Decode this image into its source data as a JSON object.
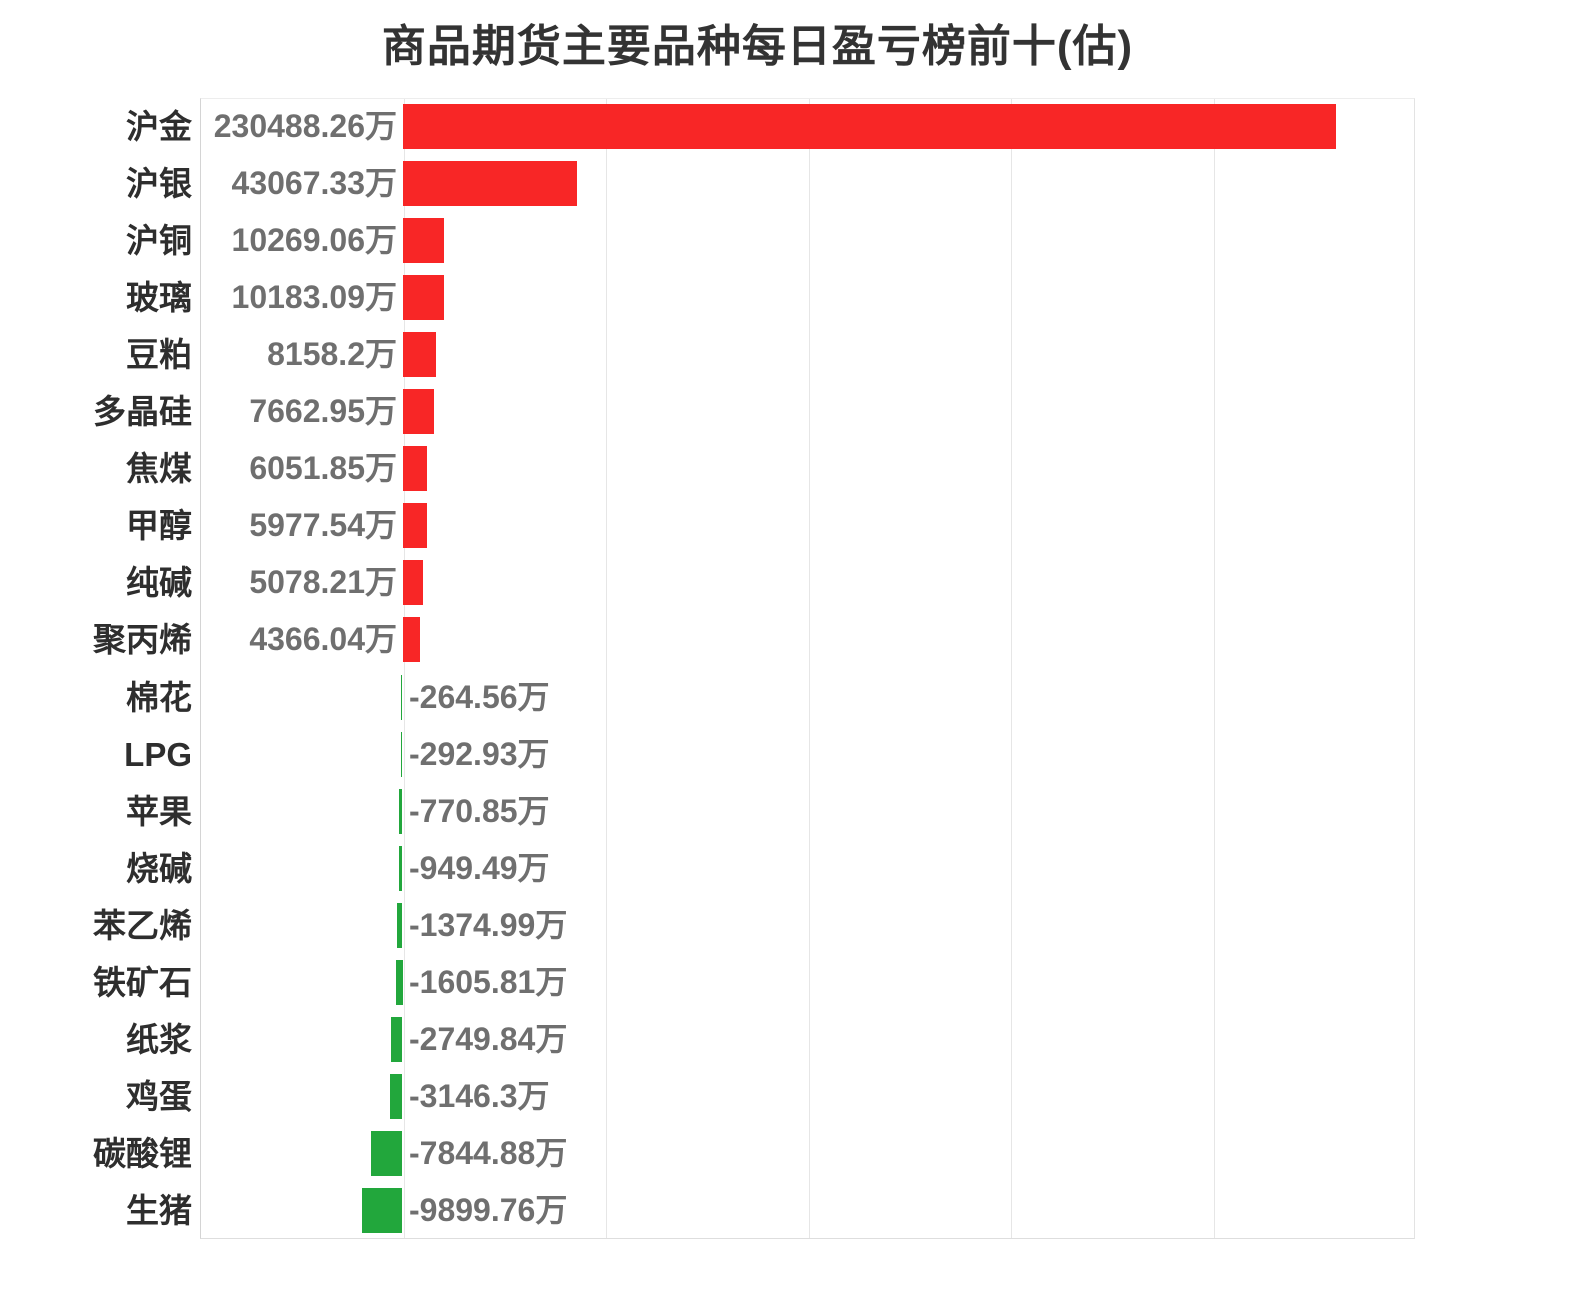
{
  "title": "商品期货主要品种每日盈亏榜前十(估)",
  "colors": {
    "positive_bar": "#f82626",
    "negative_bar": "#22a73c",
    "category_label": "#2e2e2e",
    "value_label": "#6f6f6f",
    "title": "#333333",
    "gridline": "#e6e6e6"
  },
  "chart_data": {
    "type": "bar",
    "orientation": "horizontal",
    "title": "商品期货主要品种每日盈亏榜前十(估)",
    "unit": "万",
    "grid": true,
    "legend": false,
    "xlim": [
      -50000,
      250000
    ],
    "grid_step": 50000,
    "categories": [
      "沪金",
      "沪银",
      "沪铜",
      "玻璃",
      "豆粕",
      "多晶硅",
      "焦煤",
      "甲醇",
      "纯碱",
      "聚丙烯",
      "棉花",
      "LPG",
      "苹果",
      "烧碱",
      "苯乙烯",
      "铁矿石",
      "纸浆",
      "鸡蛋",
      "碳酸锂",
      "生猪"
    ],
    "values": [
      230488.26,
      43067.33,
      10269.06,
      10183.09,
      8158.2,
      7662.95,
      6051.85,
      5977.54,
      5078.21,
      4366.04,
      -264.56,
      -292.93,
      -770.85,
      -949.49,
      -1374.99,
      -1605.81,
      -2749.84,
      -3146.3,
      -7844.88,
      -9899.76
    ],
    "value_labels": [
      "230488.26万",
      "43067.33万",
      "10269.06万",
      "10183.09万",
      "8158.2万",
      "7662.95万",
      "6051.85万",
      "5977.54万",
      "5078.21万",
      "4366.04万",
      "-264.56万",
      "-292.93万",
      "-770.85万",
      "-949.49万",
      "-1374.99万",
      "-1605.81万",
      "-2749.84万",
      "-3146.3万",
      "-7844.88万",
      "-9899.76万"
    ]
  }
}
